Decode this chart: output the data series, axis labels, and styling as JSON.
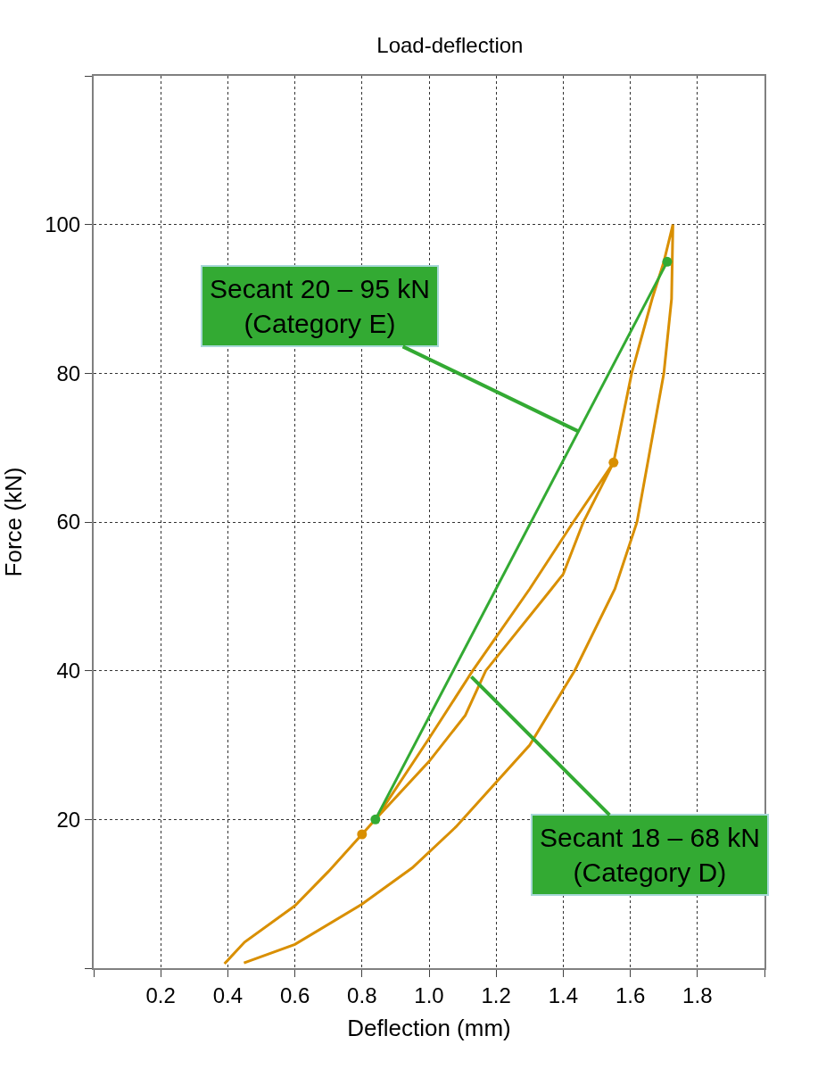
{
  "chart_data": {
    "type": "line",
    "title": "Load-deflection",
    "xlabel": "Deflection (mm)",
    "ylabel": "Force (kN)",
    "xlim": [
      0,
      2.0
    ],
    "ylim": [
      0,
      120
    ],
    "xticks": [
      {
        "value": 0,
        "label": null
      },
      0.2,
      0.4,
      0.6,
      0.8,
      {
        "value": 1.0,
        "label": "1.0"
      },
      1.2,
      1.4,
      1.6,
      1.8,
      {
        "value": 2.0,
        "label": null
      }
    ],
    "yticks": [
      {
        "value": 0,
        "label": null
      },
      20,
      40,
      60,
      80,
      100,
      {
        "value": 120,
        "label": null
      }
    ],
    "grid": true,
    "series": [
      {
        "color": "#d98f00",
        "marker": "none",
        "x": [
          0.39,
          0.45,
          0.6,
          0.7,
          0.8,
          0.84,
          1.0,
          1.13,
          1.3,
          1.43,
          1.55,
          1.46,
          1.4,
          1.365,
          1.169,
          1.108,
          1.0,
          0.84,
          1.0,
          1.108,
          1.169,
          1.365,
          1.4,
          1.46,
          1.55,
          1.604,
          1.665,
          1.7,
          1.727,
          1.723,
          1.7,
          1.62,
          1.554,
          1.434,
          1.3,
          1.08,
          0.95,
          0.8,
          0.6,
          0.448
        ],
        "values": [
          0.6,
          3.5,
          8.4,
          13,
          18,
          20,
          30.9,
          40,
          51,
          60,
          68,
          60,
          53,
          51,
          40,
          34,
          27.8,
          20,
          27.8,
          34,
          40,
          51,
          53,
          60,
          68,
          80,
          90,
          95,
          100,
          90,
          80,
          60,
          51,
          40,
          30,
          19,
          13.5,
          8.6,
          3.2,
          0.7
        ]
      },
      {
        "type": "scatter",
        "color": "#d98f00",
        "marker": "circle",
        "x": [
          0.8,
          1.55
        ],
        "values": [
          18,
          68
        ]
      },
      {
        "color": "#33aa33",
        "marker": "circle",
        "x": [
          0.84,
          1.71
        ],
        "values": [
          20,
          95
        ]
      }
    ],
    "annotations": [
      {
        "text": "Secant 20 – 95 kN\n(Category E)",
        "x": 1.445,
        "y": 72.2
      },
      {
        "text": "Secant 18 – 68 kN\n(Category D)",
        "x": 1.126,
        "y": 39.2
      }
    ]
  }
}
